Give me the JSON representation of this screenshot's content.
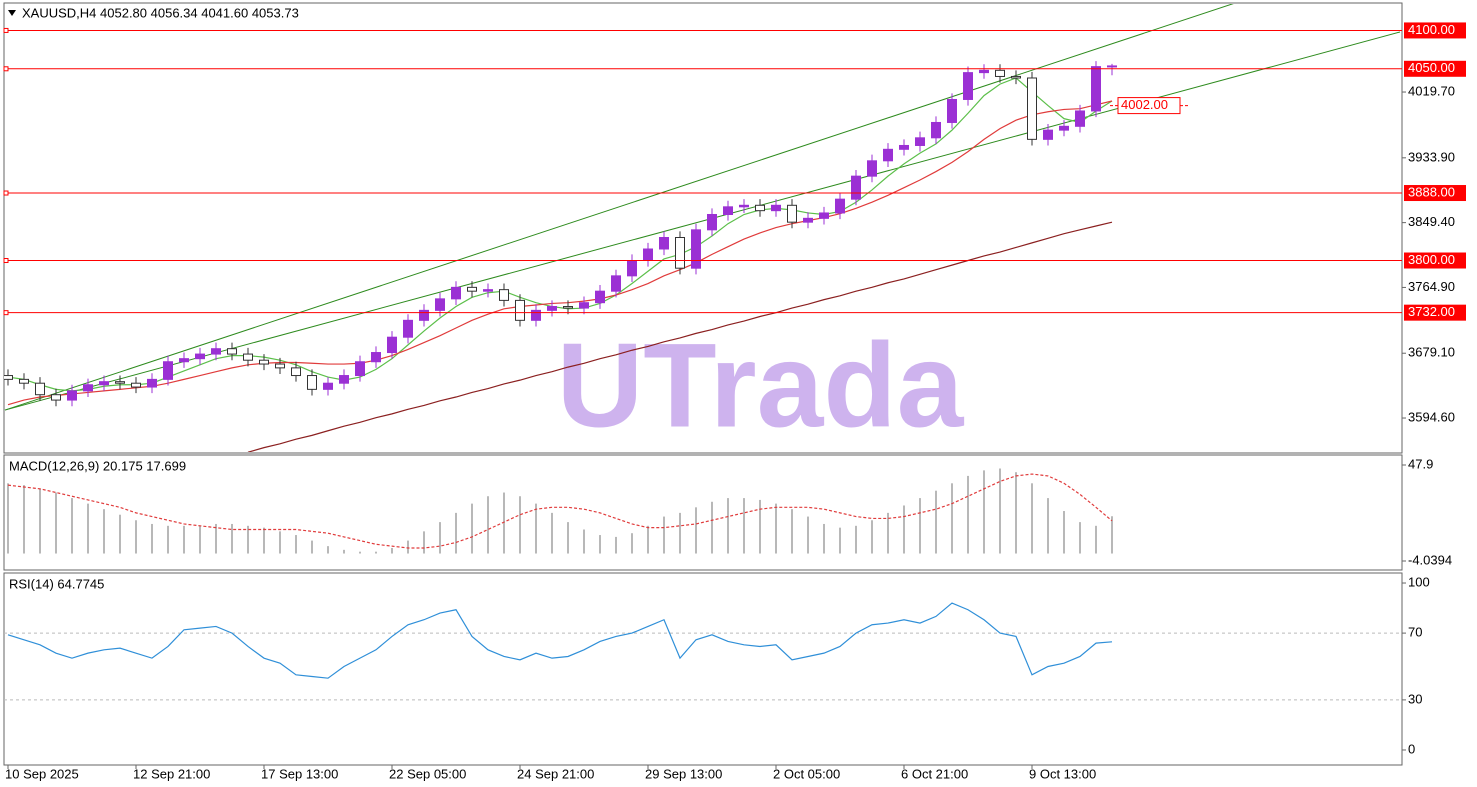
{
  "chart_data": [
    {
      "type": "candlestick",
      "title": "XAUUSD,H4  4052.80 4056.34 4041.60 4053.73",
      "watermark": "UTrada",
      "categories": [
        "10 Sep 2025",
        null,
        null,
        null,
        null,
        null,
        null,
        null,
        "12 Sep 21:00",
        null,
        null,
        null,
        null,
        null,
        null,
        null,
        "17 Sep 13:00",
        null,
        null,
        null,
        null,
        null,
        null,
        null,
        "22 Sep 05:00",
        null,
        null,
        null,
        null,
        null,
        null,
        null,
        "24 Sep 21:00",
        null,
        null,
        null,
        null,
        null,
        null,
        null,
        "29 Sep 13:00",
        null,
        null,
        null,
        null,
        null,
        null,
        null,
        "2 Oct 05:00",
        null,
        null,
        null,
        null,
        null,
        null,
        null,
        "6 Oct 21:00",
        null,
        null,
        null,
        null,
        null,
        null,
        null,
        "9 Oct 13:00",
        null,
        null,
        null,
        null,
        null
      ],
      "open": [
        3650,
        3645,
        3640,
        3625,
        3618,
        3630,
        3638,
        3642,
        3640,
        3635,
        3645,
        3668,
        3672,
        3678,
        3685,
        3678,
        3670,
        3665,
        3660,
        3650,
        3632,
        3640,
        3650,
        3668,
        3680,
        3700,
        3722,
        3735,
        3750,
        3765,
        3760,
        3762,
        3748,
        3722,
        3735,
        3740,
        3738,
        3745,
        3760,
        3780,
        3800,
        3815,
        3830,
        3790,
        3840,
        3860,
        3870,
        3872,
        3865,
        3872,
        3850,
        3855,
        3862,
        3880,
        3910,
        3930,
        3945,
        3950,
        3960,
        3980,
        4010,
        4045,
        4048,
        4040,
        4038,
        3958,
        3970,
        3975,
        3995,
        4052.8
      ],
      "high": [
        3658,
        3653,
        3648,
        3633,
        3638,
        3646,
        3650,
        3650,
        3648,
        3653,
        3676,
        3680,
        3686,
        3693,
        3693,
        3686,
        3678,
        3673,
        3668,
        3658,
        3648,
        3658,
        3676,
        3688,
        3708,
        3730,
        3743,
        3758,
        3773,
        3773,
        3770,
        3770,
        3756,
        3743,
        3748,
        3748,
        3753,
        3768,
        3788,
        3808,
        3823,
        3838,
        3838,
        3848,
        3868,
        3878,
        3880,
        3880,
        3880,
        3880,
        3863,
        3870,
        3888,
        3918,
        3938,
        3953,
        3958,
        3968,
        3988,
        4018,
        4053,
        4056,
        4056,
        4048,
        4046,
        3978,
        3983,
        4003,
        4060,
        4056.34
      ],
      "low": [
        3637,
        3632,
        3617,
        3610,
        3610,
        3622,
        3630,
        3632,
        3627,
        3627,
        3637,
        3660,
        3664,
        3670,
        3670,
        3662,
        3657,
        3652,
        3642,
        3624,
        3624,
        3632,
        3642,
        3660,
        3672,
        3692,
        3714,
        3727,
        3742,
        3752,
        3752,
        3740,
        3714,
        3714,
        3727,
        3730,
        3730,
        3737,
        3752,
        3772,
        3792,
        3807,
        3782,
        3782,
        3832,
        3852,
        3862,
        3857,
        3857,
        3842,
        3842,
        3847,
        3854,
        3872,
        3902,
        3922,
        3937,
        3942,
        3952,
        3972,
        4002,
        4037,
        4032,
        4030,
        3950,
        3950,
        3962,
        3967,
        3987,
        4041.6
      ],
      "close": [
        3645,
        3640,
        3625,
        3618,
        3630,
        3638,
        3642,
        3640,
        3635,
        3645,
        3668,
        3672,
        3678,
        3685,
        3678,
        3670,
        3665,
        3660,
        3650,
        3632,
        3640,
        3650,
        3668,
        3680,
        3700,
        3722,
        3735,
        3750,
        3765,
        3760,
        3762,
        3748,
        3722,
        3735,
        3740,
        3738,
        3745,
        3760,
        3780,
        3800,
        3815,
        3830,
        3790,
        3840,
        3860,
        3870,
        3872,
        3865,
        3872,
        3850,
        3855,
        3862,
        3880,
        3910,
        3930,
        3945,
        3950,
        3960,
        3980,
        4010,
        4045,
        4048,
        4040,
        4038,
        3958,
        3970,
        3975,
        3995,
        4052.8,
        4053.73
      ],
      "up_color": "#9b30d4",
      "down_color": "#ffffff",
      "lines": [
        {
          "color": "#5cbf4a",
          "values": [
            3648,
            3645,
            3638,
            3632,
            3630,
            3632,
            3636,
            3638,
            3638,
            3640,
            3648,
            3656,
            3664,
            3672,
            3676,
            3676,
            3674,
            3670,
            3664,
            3655,
            3648,
            3644,
            3648,
            3658,
            3672,
            3690,
            3708,
            3725,
            3740,
            3752,
            3758,
            3760,
            3752,
            3745,
            3740,
            3737,
            3738,
            3744,
            3755,
            3770,
            3786,
            3802,
            3808,
            3818,
            3832,
            3848,
            3860,
            3866,
            3868,
            3866,
            3862,
            3860,
            3864,
            3876,
            3892,
            3910,
            3926,
            3940,
            3952,
            3970,
            3992,
            4015,
            4030,
            4038,
            4020,
            4002,
            3985,
            3980,
            3995,
            4008
          ]
        },
        {
          "color": "#e03b3b",
          "values": [
            3612,
            3618,
            3622,
            3624,
            3626,
            3628,
            3630,
            3632,
            3634,
            3636,
            3640,
            3645,
            3650,
            3655,
            3660,
            3664,
            3666,
            3667,
            3667,
            3666,
            3665,
            3665,
            3666,
            3670,
            3676,
            3684,
            3693,
            3702,
            3712,
            3722,
            3730,
            3737,
            3740,
            3742,
            3744,
            3745,
            3747,
            3750,
            3755,
            3762,
            3770,
            3780,
            3788,
            3797,
            3808,
            3818,
            3828,
            3836,
            3843,
            3848,
            3852,
            3856,
            3861,
            3868,
            3876,
            3885,
            3895,
            3905,
            3916,
            3928,
            3942,
            3958,
            3972,
            3983,
            3990,
            3994,
            3997,
            3998,
            4003,
            4008
          ]
        },
        {
          "color": "#8b2020",
          "values": [
            null,
            null,
            null,
            null,
            null,
            null,
            null,
            null,
            null,
            null,
            null,
            null,
            null,
            null,
            null,
            3550,
            3556,
            3561,
            3567,
            3572,
            3578,
            3584,
            3589,
            3595,
            3600,
            3606,
            3611,
            3617,
            3622,
            3628,
            3633,
            3639,
            3644,
            3650,
            3655,
            3661,
            3666,
            3672,
            3677,
            3683,
            3688,
            3694,
            3699,
            3705,
            3710,
            3716,
            3721,
            3727,
            3732,
            3738,
            3743,
            3749,
            3754,
            3760,
            3765,
            3771,
            3776,
            3782,
            3788,
            3794,
            3800,
            3806,
            3811,
            3817,
            3823,
            3829,
            3835,
            3840,
            3845,
            3850
          ]
        }
      ],
      "trend_lines": [
        {
          "color": "#2e8b1e",
          "x": [
            -0.19,
            76.7
          ],
          "y": [
            3605,
            4135.8
          ]
        },
        {
          "color": "#2e8b1e",
          "x": [
            -0.19,
            87
          ],
          "y": [
            3605,
            4098
          ]
        }
      ],
      "levels": [
        {
          "value": 4100,
          "label": "4100.00"
        },
        {
          "value": 4050,
          "label": "4050.00"
        },
        {
          "value": 3888,
          "label": "3888.00"
        },
        {
          "value": 3800,
          "label": "3800.00"
        },
        {
          "value": 3732,
          "label": "3732.00"
        }
      ],
      "level_color": "#ff0000",
      "price_marker": {
        "value": 4002,
        "label": "4002.00"
      },
      "ylim": [
        3550.3,
        4139.7
      ],
      "yticks": [
        {
          "value": 4019.7,
          "label": "4019.70"
        },
        {
          "value": 3933.9,
          "label": "3933.90"
        },
        {
          "value": 3849.4,
          "label": "3849.40"
        },
        {
          "value": 3764.9,
          "label": "3764.90"
        },
        {
          "value": 3679.1,
          "label": "3679.10"
        },
        {
          "value": 3594.6,
          "label": "3594.60"
        }
      ]
    },
    {
      "type": "macd",
      "title": "MACD(12,26,9) 20.175 17.699",
      "histogram": [
        38,
        37,
        35,
        33,
        30,
        27,
        24,
        21,
        18,
        16,
        15,
        15,
        15,
        16,
        16,
        15,
        14,
        12,
        10,
        7,
        4,
        2,
        1,
        1,
        3,
        7,
        12,
        17,
        22,
        27,
        31,
        33,
        31,
        27,
        22,
        17,
        13,
        10,
        9,
        11,
        15,
        20,
        22,
        25,
        28,
        30,
        30,
        29,
        27,
        24,
        20,
        16,
        14,
        15,
        18,
        22,
        26,
        30,
        34,
        38,
        42,
        45,
        46,
        44,
        38,
        30,
        23,
        17,
        15,
        20.175
      ],
      "signal": [
        37,
        36,
        35,
        33,
        31,
        29,
        27,
        25,
        22,
        20,
        18,
        16,
        15,
        14,
        13,
        13,
        13,
        13,
        13,
        12,
        11,
        9,
        7,
        5,
        4,
        3,
        3,
        4,
        6,
        9,
        13,
        17,
        21,
        24,
        25,
        25,
        24,
        22,
        19,
        16,
        14,
        14,
        15,
        16,
        18,
        20,
        22,
        24,
        25,
        25,
        25,
        24,
        22,
        20,
        19,
        19,
        20,
        22,
        24,
        27,
        31,
        35,
        39,
        42,
        43,
        42,
        38,
        32,
        25,
        17.699
      ],
      "histogram_color": "#b8b8b8",
      "signal_color": "#e03b3b",
      "ylim": [
        -8.91,
        53.31
      ],
      "yticks": [
        47.9,
        -4.0394
      ]
    },
    {
      "type": "rsi",
      "title": "RSI(14) 64.7745",
      "values": [
        69,
        66,
        63,
        58,
        55,
        58,
        60,
        61,
        58,
        55,
        62,
        72,
        73,
        74,
        70,
        62,
        55,
        52,
        45,
        44,
        43,
        50,
        55,
        60,
        68,
        75,
        78,
        82,
        84,
        68,
        60,
        56,
        54,
        58,
        55,
        56,
        60,
        65,
        68,
        70,
        74,
        78,
        55,
        66,
        69,
        65,
        63,
        62,
        63,
        54,
        56,
        58,
        62,
        70,
        75,
        76,
        78,
        76,
        80,
        88,
        84,
        78,
        70,
        68,
        45,
        50,
        52,
        56,
        64,
        64.7745
      ],
      "color": "#2f8fd8",
      "levels": [
        70,
        30
      ],
      "ylim": [
        -9,
        106
      ],
      "yticks": [
        100,
        70,
        30,
        0
      ]
    }
  ]
}
